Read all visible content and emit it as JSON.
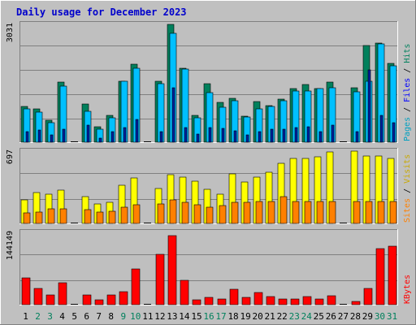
{
  "title": "Daily usage for December 2023",
  "colors": {
    "page_bg": "#c0c0c0",
    "panel_bg": "#bfbfbf",
    "title": "#0000cc",
    "gridline": "#808080",
    "hits": "#00805c",
    "files": "#00c0ff",
    "pages": "#00a0c0",
    "visits": "#ffff00",
    "sites": "#ff8000",
    "kbytes": "#ff0000",
    "weekend_label": "#00805c",
    "weekday_label": "#000080"
  },
  "chart_data": [
    {
      "type": "bar",
      "name": "hits-files-pages",
      "y_max_label": "3031",
      "ylim": [
        0,
        3031
      ],
      "right_labels": [
        "Pages",
        "Files",
        "Hits"
      ],
      "categories": [
        "1",
        "2",
        "3",
        "4",
        "5",
        "6",
        "7",
        "8",
        "9",
        "10",
        "11",
        "12",
        "13",
        "14",
        "15",
        "16",
        "17",
        "18",
        "19",
        "20",
        "21",
        "22",
        "23",
        "24",
        "25",
        "26",
        "27",
        "28",
        "29",
        "30",
        "31"
      ],
      "series": [
        {
          "name": "Hits",
          "values": [
            930,
            860,
            570,
            1550,
            0,
            980,
            400,
            690,
            1570,
            2010,
            0,
            1570,
            3031,
            1910,
            680,
            1500,
            1030,
            1130,
            670,
            1040,
            940,
            1100,
            1380,
            1490,
            1380,
            1550,
            0,
            1410,
            2490,
            2550,
            2020
          ]
        },
        {
          "name": "Files",
          "values": [
            850,
            780,
            510,
            1450,
            0,
            800,
            340,
            630,
            1560,
            1910,
            0,
            1500,
            2800,
            1890,
            620,
            1270,
            900,
            1060,
            640,
            850,
            920,
            1070,
            1320,
            1320,
            1380,
            1400,
            0,
            1290,
            1570,
            2520,
            1970
          ]
        },
        {
          "name": "Pages",
          "values": [
            280,
            320,
            190,
            330,
            0,
            440,
            110,
            280,
            380,
            590,
            0,
            270,
            1400,
            380,
            210,
            380,
            350,
            290,
            180,
            270,
            330,
            330,
            380,
            390,
            270,
            430,
            0,
            270,
            1850,
            700,
            500
          ]
        }
      ]
    },
    {
      "type": "bar",
      "name": "visits-sites",
      "y_max_label": "697",
      "ylim": [
        0,
        697
      ],
      "right_labels": [
        "Sites",
        "Visits"
      ],
      "categories": [
        "1",
        "2",
        "3",
        "4",
        "5",
        "6",
        "7",
        "8",
        "9",
        "10",
        "11",
        "12",
        "13",
        "14",
        "15",
        "16",
        "17",
        "18",
        "19",
        "20",
        "21",
        "22",
        "23",
        "24",
        "25",
        "26",
        "27",
        "28",
        "29",
        "30",
        "31"
      ],
      "series": [
        {
          "name": "Visits",
          "values": [
            230,
            300,
            280,
            320,
            0,
            260,
            190,
            200,
            370,
            440,
            0,
            340,
            470,
            450,
            410,
            330,
            280,
            480,
            400,
            450,
            490,
            580,
            630,
            630,
            640,
            690,
            0,
            700,
            650,
            650,
            630
          ]
        },
        {
          "name": "Sites",
          "values": [
            100,
            110,
            140,
            140,
            0,
            130,
            110,
            120,
            160,
            180,
            0,
            190,
            230,
            200,
            180,
            160,
            170,
            200,
            200,
            210,
            210,
            260,
            210,
            210,
            210,
            210,
            0,
            210,
            210,
            210,
            210
          ]
        }
      ]
    },
    {
      "type": "bar",
      "name": "kbytes",
      "y_max_label": "144149",
      "ylim": [
        0,
        144149
      ],
      "right_labels": [
        "KBytes"
      ],
      "categories": [
        "1",
        "2",
        "3",
        "4",
        "5",
        "6",
        "7",
        "8",
        "9",
        "10",
        "11",
        "12",
        "13",
        "14",
        "15",
        "16",
        "17",
        "18",
        "19",
        "20",
        "21",
        "22",
        "23",
        "24",
        "25",
        "26",
        "27",
        "28",
        "29",
        "30",
        "31"
      ],
      "series": [
        {
          "name": "KBytes",
          "values": [
            53000,
            32000,
            20000,
            43000,
            0,
            20000,
            9000,
            20000,
            26000,
            71000,
            0,
            100000,
            138000,
            49000,
            9000,
            14000,
            12000,
            31000,
            15000,
            25000,
            17000,
            12000,
            12000,
            17000,
            12000,
            18000,
            0,
            7000,
            32000,
            112000,
            117000
          ]
        }
      ]
    }
  ]
}
